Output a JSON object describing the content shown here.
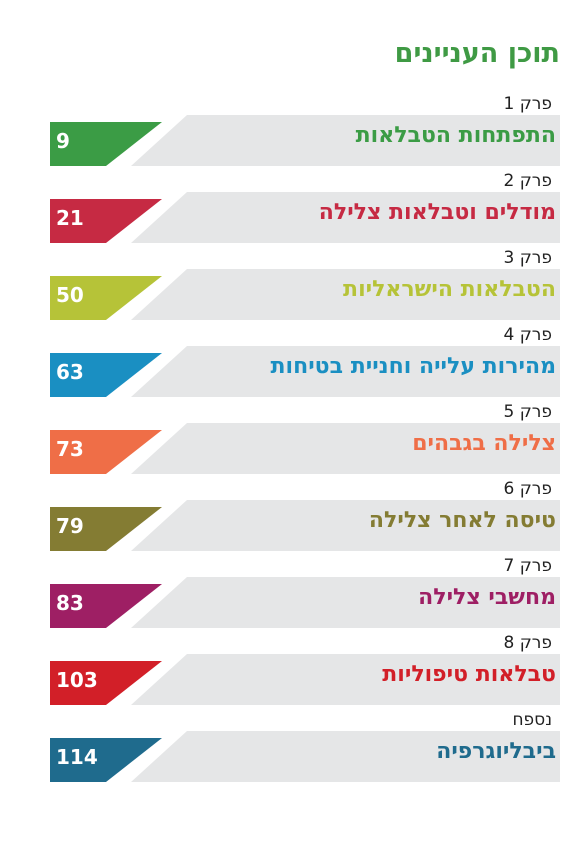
{
  "title": "תוכן העניינים",
  "entries": [
    {
      "label": "פרק 1",
      "title": "התפתחות הטבלאות",
      "page": "9",
      "color": "#3b9c45"
    },
    {
      "label": "פרק 2",
      "title": "מודלים וטבלאות צלילה",
      "page": "21",
      "color": "#c62a43"
    },
    {
      "label": "פרק 3",
      "title": "הטבלאות הישראליות",
      "page": "50",
      "color": "#b6c338"
    },
    {
      "label": "פרק 4",
      "title": "מהירות עלייה וחניית בטיחות",
      "page": "63",
      "color": "#1a8fc2"
    },
    {
      "label": "פרק 5",
      "title": "צלילה בגבהים",
      "page": "73",
      "color": "#ef6e47"
    },
    {
      "label": "פרק 6",
      "title": "טיסה לאחר צלילה",
      "page": "79",
      "color": "#847c33"
    },
    {
      "label": "פרק 7",
      "title": "מחשבי צלילה",
      "page": "83",
      "color": "#9e1f64"
    },
    {
      "label": "פרק 8",
      "title": "טבלאות טיפוליות",
      "page": "103",
      "color": "#d21f28"
    },
    {
      "label": "נספח",
      "title": "ביבליוגרפיה",
      "page": "114",
      "color": "#1f6b8d"
    }
  ]
}
